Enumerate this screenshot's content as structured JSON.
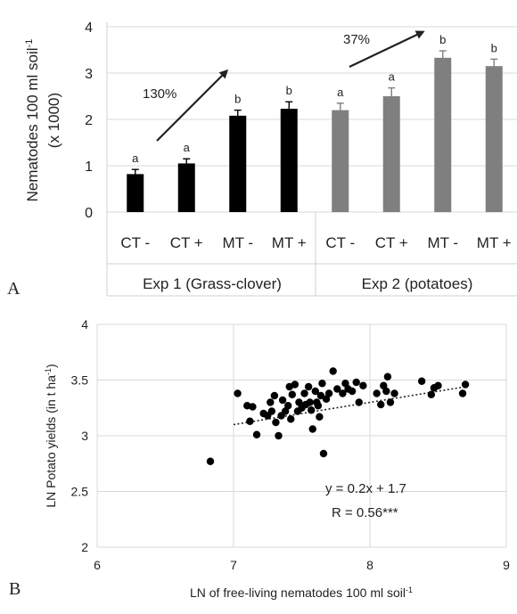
{
  "chart_data": [
    {
      "type": "bar",
      "panel": "A",
      "ylabel_line1": "Nematodes 100 ml soil",
      "ylabel_sup": "-1",
      "ylabel_line2": "(x 1000)",
      "ylim": [
        0,
        4
      ],
      "yticks": [
        "0",
        "1",
        "2",
        "3",
        "4"
      ],
      "grid": true,
      "categories": [
        "CT -",
        "CT +",
        "MT -",
        "MT +",
        "CT -",
        "CT +",
        "MT -",
        "MT +"
      ],
      "values": [
        0.82,
        1.05,
        2.08,
        2.23,
        2.2,
        2.5,
        3.33,
        3.15
      ],
      "errors": [
        0.1,
        0.1,
        0.12,
        0.15,
        0.15,
        0.18,
        0.15,
        0.15
      ],
      "letters": [
        "a",
        "a",
        "b",
        "b",
        "a",
        "a",
        "b",
        "b"
      ],
      "groups": [
        {
          "label": "Exp 1 (Grass-clover)",
          "color": "#000000",
          "indices": [
            0,
            1,
            2,
            3
          ]
        },
        {
          "label": "Exp 2 (potatoes)",
          "color": "#7f7f7f",
          "indices": [
            4,
            5,
            6,
            7
          ]
        }
      ],
      "annotations": [
        "130%",
        "37%"
      ]
    },
    {
      "type": "scatter",
      "panel": "B",
      "xlabel": "LN of free-living nematodes 100 ml soil",
      "xlabel_sup": "-1",
      "ylabel": "LN Potato yields (in t ha",
      "ylabel_sup": "-1",
      "ylabel_end": ")",
      "xlim": [
        6,
        9
      ],
      "ylim": [
        2,
        4
      ],
      "xticks": [
        "6",
        "7",
        "8",
        "9"
      ],
      "yticks": [
        "2",
        "2.5",
        "3",
        "3.5",
        "4"
      ],
      "grid": true,
      "trendline": {
        "slope": 0.2,
        "intercept": 1.7,
        "x_range": [
          7,
          8.7
        ],
        "style": "dotted"
      },
      "equation": "y = 0.2x + 1.7",
      "r_text": "R = 0.56***",
      "points": [
        [
          6.83,
          2.77
        ],
        [
          7.03,
          3.38
        ],
        [
          7.1,
          3.27
        ],
        [
          7.12,
          3.13
        ],
        [
          7.14,
          3.26
        ],
        [
          7.17,
          3.01
        ],
        [
          7.22,
          3.2
        ],
        [
          7.25,
          3.18
        ],
        [
          7.27,
          3.3
        ],
        [
          7.28,
          3.22
        ],
        [
          7.3,
          3.36
        ],
        [
          7.31,
          3.12
        ],
        [
          7.33,
          3.0
        ],
        [
          7.35,
          3.18
        ],
        [
          7.36,
          3.32
        ],
        [
          7.38,
          3.22
        ],
        [
          7.4,
          3.27
        ],
        [
          7.41,
          3.44
        ],
        [
          7.42,
          3.15
        ],
        [
          7.43,
          3.37
        ],
        [
          7.45,
          3.46
        ],
        [
          7.47,
          3.22
        ],
        [
          7.48,
          3.3
        ],
        [
          7.5,
          3.25
        ],
        [
          7.52,
          3.38
        ],
        [
          7.53,
          3.28
        ],
        [
          7.55,
          3.44
        ],
        [
          7.56,
          3.3
        ],
        [
          7.57,
          3.23
        ],
        [
          7.58,
          3.06
        ],
        [
          7.6,
          3.4
        ],
        [
          7.61,
          3.3
        ],
        [
          7.62,
          3.27
        ],
        [
          7.63,
          3.17
        ],
        [
          7.64,
          3.36
        ],
        [
          7.65,
          3.47
        ],
        [
          7.66,
          2.84
        ],
        [
          7.68,
          3.33
        ],
        [
          7.7,
          3.38
        ],
        [
          7.73,
          3.58
        ],
        [
          7.76,
          3.42
        ],
        [
          7.8,
          3.38
        ],
        [
          7.82,
          3.47
        ],
        [
          7.84,
          3.42
        ],
        [
          7.87,
          3.4
        ],
        [
          7.9,
          3.48
        ],
        [
          7.92,
          3.3
        ],
        [
          7.95,
          3.45
        ],
        [
          8.05,
          3.38
        ],
        [
          8.08,
          3.28
        ],
        [
          8.1,
          3.45
        ],
        [
          8.12,
          3.4
        ],
        [
          8.13,
          3.53
        ],
        [
          8.15,
          3.3
        ],
        [
          8.18,
          3.38
        ],
        [
          8.38,
          3.49
        ],
        [
          8.45,
          3.37
        ],
        [
          8.47,
          3.43
        ],
        [
          8.5,
          3.45
        ],
        [
          8.68,
          3.38
        ],
        [
          8.7,
          3.46
        ]
      ]
    }
  ]
}
